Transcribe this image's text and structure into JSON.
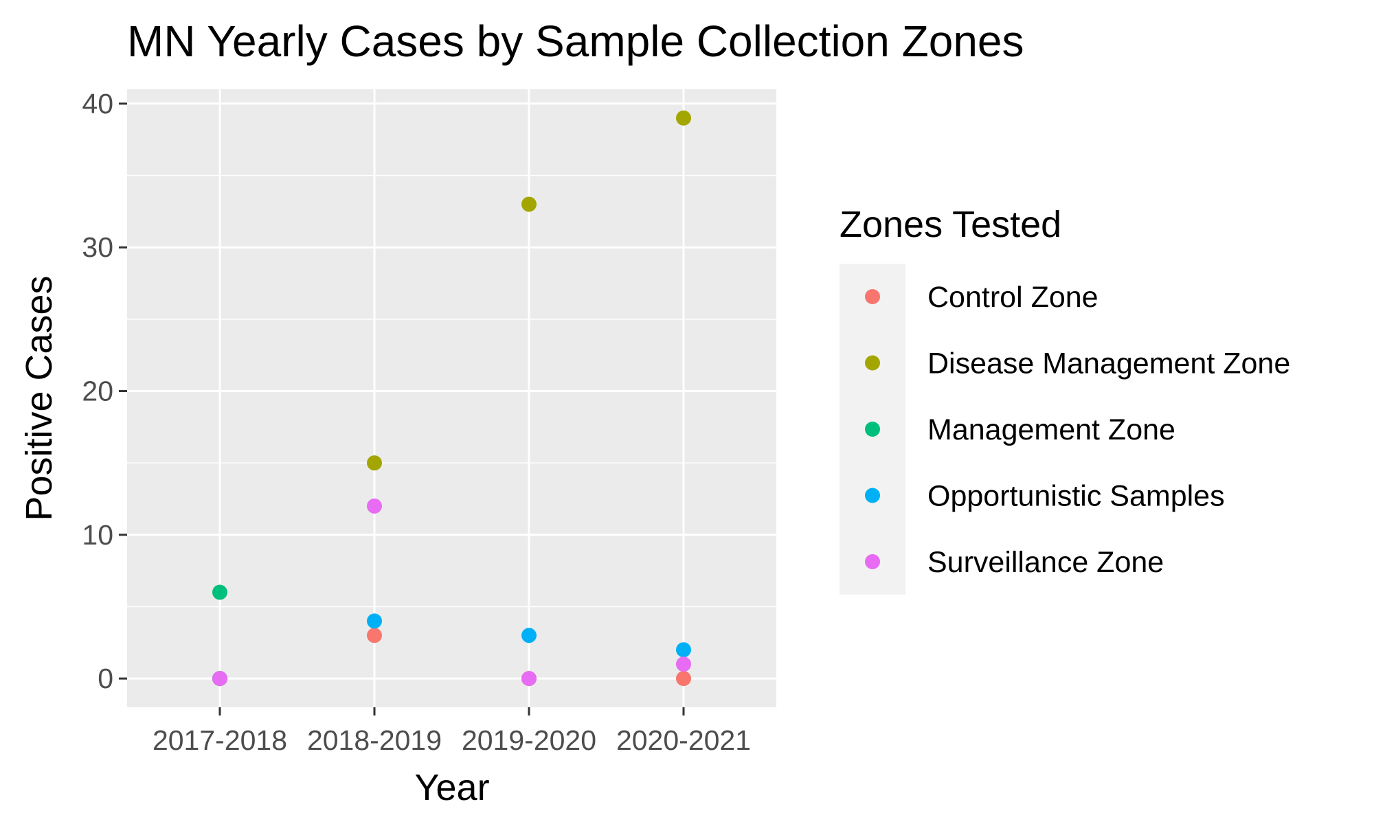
{
  "chart_data": {
    "type": "scatter",
    "title": "MN Yearly Cases by Sample Collection Zones",
    "xlabel": "Year",
    "ylabel": "Positive Cases",
    "categories": [
      "2017-2018",
      "2018-2019",
      "2019-2020",
      "2020-2021"
    ],
    "ylim": [
      -2,
      41
    ],
    "yticks": [
      0,
      10,
      20,
      30,
      40
    ],
    "grid": true,
    "legend": {
      "title": "Zones Tested",
      "position": "right"
    },
    "series": [
      {
        "name": "Control Zone",
        "color": "#F8766D",
        "values": [
          0,
          3,
          0,
          0
        ]
      },
      {
        "name": "Disease Management Zone",
        "color": "#A3A500",
        "values": [
          0,
          15,
          33,
          39
        ]
      },
      {
        "name": "Management Zone",
        "color": "#00BF7D",
        "values": [
          6,
          null,
          null,
          null
        ]
      },
      {
        "name": "Opportunistic Samples",
        "color": "#00B0F6",
        "values": [
          0,
          4,
          3,
          2
        ]
      },
      {
        "name": "Surveillance Zone",
        "color": "#E76BF3",
        "values": [
          0,
          12,
          0,
          1
        ]
      }
    ]
  }
}
